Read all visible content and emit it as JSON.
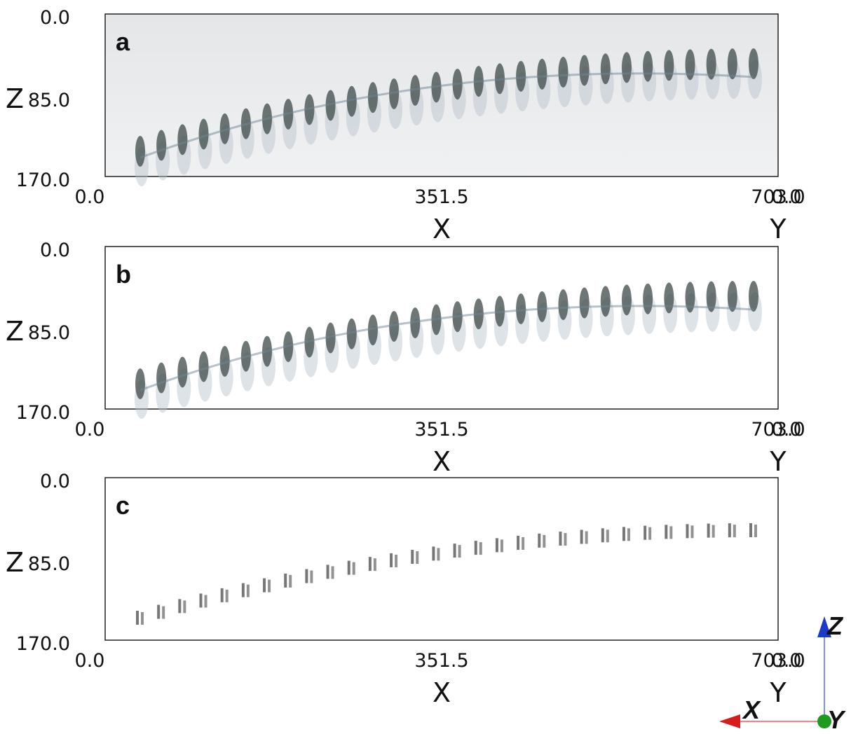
{
  "panels": [
    {
      "label": "a",
      "z_axis": {
        "title": "Z",
        "ticks": [
          "0.0",
          "85.0",
          "170.0"
        ]
      },
      "x_axis": {
        "title": "X",
        "ticks": [
          "0.0",
          "351.5",
          "703.0"
        ]
      },
      "y_axis": {
        "title": "Y",
        "ticks": [
          "0.0"
        ]
      }
    },
    {
      "label": "b",
      "z_axis": {
        "title": "Z",
        "ticks": [
          "0.0",
          "85.0",
          "170.0"
        ]
      },
      "x_axis": {
        "title": "X",
        "ticks": [
          "0.0",
          "351.5",
          "703.0"
        ]
      },
      "y_axis": {
        "title": "Y",
        "ticks": [
          "0.0"
        ]
      }
    },
    {
      "label": "c",
      "z_axis": {
        "title": "Z",
        "ticks": [
          "0.0",
          "85.0",
          "170.0"
        ]
      },
      "x_axis": {
        "title": "X",
        "ticks": [
          "0.0",
          "351.5",
          "703.0"
        ]
      },
      "y_axis": {
        "title": "Y",
        "ticks": [
          "0.0"
        ]
      }
    }
  ],
  "orientation": {
    "x": "X",
    "y": "Y",
    "z": "Z"
  }
}
